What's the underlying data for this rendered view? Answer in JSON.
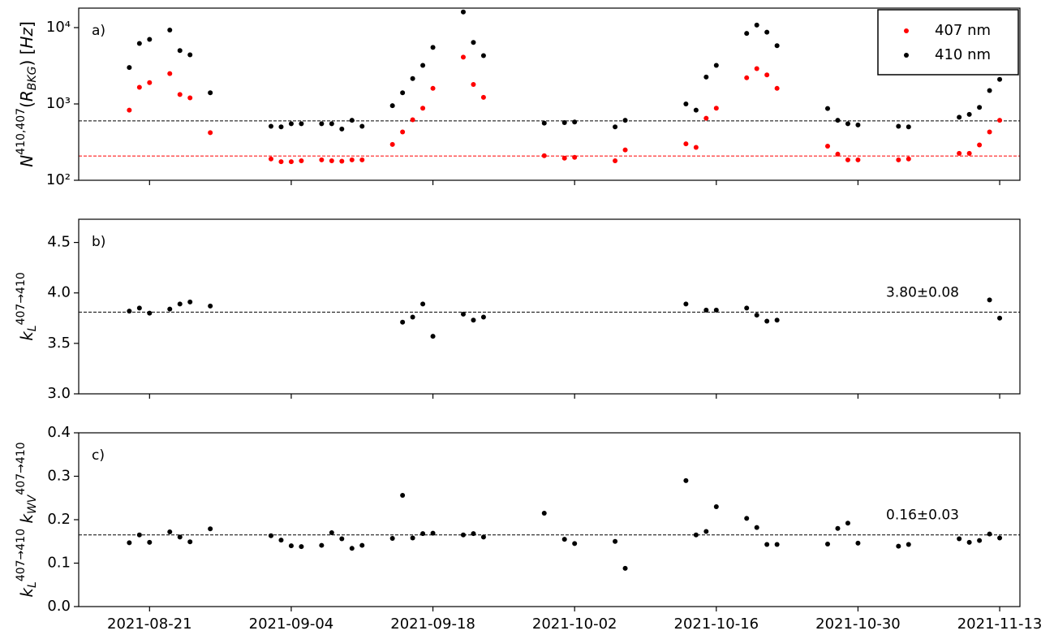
{
  "chart_data": {
    "type": "scatter",
    "xlim": [
      "2021-08-14",
      "2021-11-15"
    ],
    "xticks": [
      "2021-08-21",
      "2021-09-04",
      "2021-09-18",
      "2021-10-02",
      "2021-10-16",
      "2021-10-30",
      "2021-11-13"
    ],
    "panels": [
      {
        "type": "scatter",
        "annotation": "a)",
        "yscale": "log",
        "ylabel": [
          {
            "text": "N",
            "style": "italic"
          },
          {
            "text": "410,407",
            "style": "sup"
          },
          {
            "text": "(",
            "style": "normal"
          },
          {
            "text": "R",
            "style": "italic"
          },
          {
            "text": "BKG",
            "style": "sub"
          },
          {
            "text": ") [",
            "style": "normal"
          },
          {
            "text": "Hz",
            "style": "italic"
          },
          {
            "text": "]",
            "style": "normal"
          }
        ],
        "ylim": [
          100,
          18000
        ],
        "yticks": [
          {
            "value": 100,
            "label": "10²"
          },
          {
            "value": 1000,
            "label": "10³"
          },
          {
            "value": 10000,
            "label": "10⁴"
          }
        ],
        "legend": "upper right",
        "x": [
          "2021-08-19",
          "2021-08-20",
          "2021-08-21",
          "2021-08-23",
          "2021-08-24",
          "2021-08-25",
          "2021-08-27",
          "2021-09-02",
          "2021-09-03",
          "2021-09-04",
          "2021-09-05",
          "2021-09-07",
          "2021-09-08",
          "2021-09-09",
          "2021-09-10",
          "2021-09-11",
          "2021-09-14",
          "2021-09-15",
          "2021-09-16",
          "2021-09-17",
          "2021-09-18",
          "2021-09-21",
          "2021-09-22",
          "2021-09-23",
          "2021-09-29",
          "2021-10-01",
          "2021-10-02",
          "2021-10-06",
          "2021-10-07",
          "2021-10-13",
          "2021-10-14",
          "2021-10-15",
          "2021-10-16",
          "2021-10-19",
          "2021-10-20",
          "2021-10-21",
          "2021-10-22",
          "2021-10-27",
          "2021-10-28",
          "2021-10-29",
          "2021-10-30",
          "2021-11-03",
          "2021-11-04",
          "2021-11-09",
          "2021-11-10",
          "2021-11-11",
          "2021-11-12",
          "2021-11-13"
        ],
        "series": [
          {
            "name": "407 nm",
            "color": "#ff0000",
            "values": [
              830,
              1650,
              1900,
              2500,
              1330,
              1200,
              420,
              190,
              175,
              175,
              180,
              185,
              180,
              178,
              185,
              185,
              295,
              430,
              620,
              880,
              1600,
              4100,
              1800,
              1220,
              210,
              195,
              200,
              180,
              250,
              300,
              270,
              650,
              880,
              2200,
              2900,
              2400,
              1600,
              280,
              220,
              185,
              185,
              185,
              190,
              225,
              225,
              290,
              430,
              610
            ]
          },
          {
            "name": "410 nm",
            "color": "#000000",
            "values": [
              3000,
              6200,
              7000,
              9300,
              5000,
              4400,
              1400,
              510,
              500,
              550,
              550,
              550,
              550,
              470,
              610,
              510,
              950,
              1400,
              2150,
              3200,
              5500,
              16000,
              6400,
              4300,
              560,
              570,
              580,
              500,
              610,
              1000,
              830,
              2250,
              3200,
              8400,
              10800,
              8700,
              5800,
              870,
              610,
              550,
              530,
              510,
              500,
              670,
              730,
              900,
              1500,
              2100
            ]
          }
        ],
        "hlines": [
          {
            "value": 600,
            "color": "#000000"
          },
          {
            "value": 208,
            "color": "#ff0000"
          }
        ]
      },
      {
        "type": "scatter",
        "annotation": "b)",
        "note": "3.80±0.08",
        "ylabel": [
          {
            "text": "k",
            "style": "italic"
          },
          {
            "text": "L",
            "style": "sub"
          },
          {
            "text": "407→410",
            "style": "sup"
          }
        ],
        "ylim": [
          3.0,
          4.73
        ],
        "yticks": [
          {
            "value": 3.0,
            "label": "3.0"
          },
          3.5,
          {
            "value": 4.0,
            "label": "4.0"
          },
          4.5
        ],
        "x": [
          "2021-08-19",
          "2021-08-20",
          "2021-08-21",
          "2021-08-23",
          "2021-08-24",
          "2021-08-25",
          "2021-08-27",
          "2021-09-15",
          "2021-09-16",
          "2021-09-17",
          "2021-09-18",
          "2021-09-21",
          "2021-09-22",
          "2021-09-23",
          "2021-10-13",
          "2021-10-15",
          "2021-10-16",
          "2021-10-19",
          "2021-10-20",
          "2021-10-21",
          "2021-10-22",
          "2021-11-12",
          "2021-11-13"
        ],
        "series": [
          {
            "color": "#000000",
            "values": [
              3.82,
              3.85,
              3.8,
              3.84,
              3.89,
              3.91,
              3.87,
              3.71,
              3.76,
              3.89,
              3.57,
              3.79,
              3.73,
              3.76,
              3.89,
              3.83,
              3.83,
              3.85,
              3.78,
              3.72,
              3.73,
              3.93,
              3.75
            ]
          }
        ],
        "hlines": [
          {
            "value": 3.81,
            "color": "#000000"
          }
        ]
      },
      {
        "type": "scatter",
        "annotation": "c)",
        "note": "0.16±0.03",
        "ylabel": [
          {
            "text": "k",
            "style": "italic"
          },
          {
            "text": "L",
            "style": "sub"
          },
          {
            "text": "407→410",
            "style": "sup"
          },
          {
            "text": " k",
            "style": "italic"
          },
          {
            "text": "WV",
            "style": "sub"
          },
          {
            "text": "407→410",
            "style": "sup"
          }
        ],
        "ylim": [
          0,
          0.4
        ],
        "yticks": [
          {
            "value": 0,
            "label": "0.0"
          },
          0.1,
          0.2,
          0.3,
          0.4
        ],
        "x": [
          "2021-08-19",
          "2021-08-20",
          "2021-08-21",
          "2021-08-23",
          "2021-08-24",
          "2021-08-25",
          "2021-08-27",
          "2021-09-02",
          "2021-09-03",
          "2021-09-04",
          "2021-09-05",
          "2021-09-07",
          "2021-09-08",
          "2021-09-09",
          "2021-09-10",
          "2021-09-11",
          "2021-09-14",
          "2021-09-15",
          "2021-09-16",
          "2021-09-17",
          "2021-09-18",
          "2021-09-21",
          "2021-09-22",
          "2021-09-23",
          "2021-09-29",
          "2021-10-01",
          "2021-10-02",
          "2021-10-06",
          "2021-10-07",
          "2021-10-13",
          "2021-10-14",
          "2021-10-15",
          "2021-10-16",
          "2021-10-19",
          "2021-10-20",
          "2021-10-21",
          "2021-10-22",
          "2021-10-27",
          "2021-10-28",
          "2021-10-29",
          "2021-10-30",
          "2021-11-03",
          "2021-11-04",
          "2021-11-09",
          "2021-11-10",
          "2021-11-11",
          "2021-11-12",
          "2021-11-13"
        ],
        "series": [
          {
            "color": "#000000",
            "values": [
              0.147,
              0.165,
              0.148,
              0.172,
              0.16,
              0.149,
              0.179,
              0.163,
              0.153,
              0.14,
              0.138,
              0.141,
              0.17,
              0.156,
              0.134,
              0.141,
              0.157,
              0.256,
              0.158,
              0.168,
              0.169,
              0.165,
              0.168,
              0.16,
              0.215,
              0.155,
              0.145,
              0.15,
              0.088,
              0.29,
              0.165,
              0.173,
              0.23,
              0.203,
              0.182,
              0.143,
              0.143,
              0.144,
              0.18,
              0.192,
              0.146,
              0.139,
              0.143,
              0.156,
              0.148,
              0.152,
              0.167,
              0.158
            ]
          }
        ],
        "hlines": [
          {
            "value": 0.165,
            "color": "#000000"
          }
        ]
      }
    ]
  }
}
